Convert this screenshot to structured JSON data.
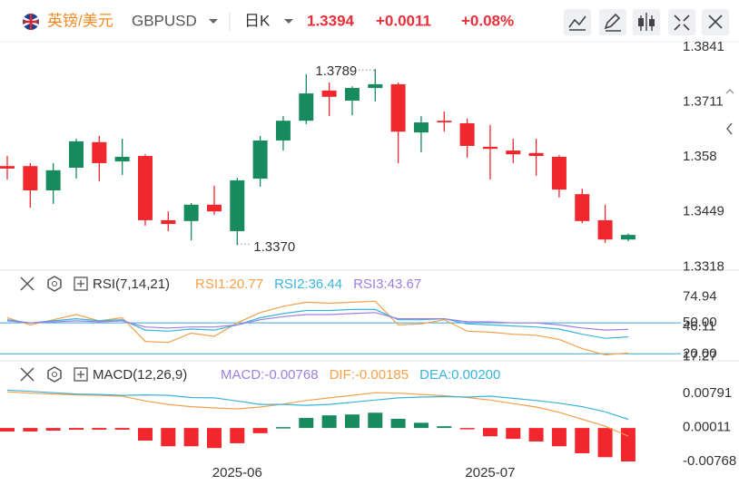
{
  "header": {
    "pair": "英镑/美元",
    "symbol": "GBPUSD",
    "period": "日K",
    "price": "1.3394",
    "change": "+0.0011",
    "change_pct": "+0.08%"
  },
  "chart_data": [
    {
      "type": "candlestick",
      "up_color": "#178a5e",
      "down_color": "#f0282d",
      "open": [
        1.3558,
        1.3558,
        1.35,
        1.3554,
        1.3615,
        1.3569,
        1.3582,
        1.3429,
        1.3427,
        1.3466,
        1.3403,
        1.3528,
        1.3619,
        1.3666,
        1.3738,
        1.3714,
        1.3744,
        1.3753,
        1.3638,
        1.3666,
        1.366,
        1.3604,
        1.3595,
        1.3589,
        1.358,
        1.3491,
        1.3429,
        1.3383
      ],
      "high": [
        1.3582,
        1.3565,
        1.3565,
        1.3623,
        1.363,
        1.3623,
        1.3586,
        1.345,
        1.347,
        1.3511,
        1.353,
        1.363,
        1.3677,
        1.3777,
        1.3757,
        1.3748,
        1.3789,
        1.3757,
        1.3677,
        1.3688,
        1.3671,
        1.3656,
        1.3623,
        1.3623,
        1.3584,
        1.3504,
        1.3466,
        1.3397
      ],
      "low": [
        1.3526,
        1.3459,
        1.3468,
        1.3528,
        1.3522,
        1.3537,
        1.3416,
        1.3403,
        1.3381,
        1.3442,
        1.337,
        1.3509,
        1.3595,
        1.3658,
        1.3677,
        1.3679,
        1.3712,
        1.3565,
        1.3591,
        1.364,
        1.3578,
        1.3526,
        1.3565,
        1.3535,
        1.3483,
        1.3422,
        1.3375,
        1.3379
      ],
      "close": [
        1.3552,
        1.35,
        1.3548,
        1.3617,
        1.3565,
        1.358,
        1.3429,
        1.342,
        1.3466,
        1.345,
        1.3524,
        1.3619,
        1.3666,
        1.3731,
        1.3723,
        1.3744,
        1.3753,
        1.364,
        1.3662,
        1.3662,
        1.3606,
        1.3599,
        1.3586,
        1.3582,
        1.3502,
        1.3427,
        1.3383,
        1.3394
      ],
      "max_label": "1.3789",
      "min_label": "1.3370",
      "ylim": [
        1.331,
        1.385
      ],
      "yticks": [
        1.3841,
        1.3711,
        1.358,
        1.3449,
        1.3318
      ],
      "ytick_colors": [
        "#e8474f",
        "#e8474f",
        "#e8474f",
        "#e8474f",
        "#178a5e"
      ]
    },
    {
      "type": "line",
      "title": "RSI(7,14,21)",
      "ylim": [
        15,
        80
      ],
      "yticks": [
        74.94,
        {
          "value": 50,
          "label": "50.00"
        },
        46.11,
        17.27,
        {
          "value": 20,
          "label": "20.00"
        }
      ],
      "hlines": [
        50,
        20
      ],
      "hline_color": "#3aa7d6",
      "series": [
        {
          "name": "RSI1",
          "label": "RSI1:20.77",
          "color": "#f5a04a",
          "values": [
            55,
            48,
            53,
            58,
            52,
            55,
            32,
            31,
            40,
            37,
            50,
            60,
            66,
            70,
            69,
            70,
            71,
            48,
            49,
            53,
            42,
            41,
            39,
            38,
            34,
            25,
            19,
            20.77
          ]
        },
        {
          "name": "RSI2",
          "label": "RSI2:36.44",
          "color": "#3ab4d9",
          "values": [
            53,
            50,
            52,
            54,
            52,
            53,
            43,
            42,
            44,
            43,
            48,
            55,
            59,
            62,
            62,
            63,
            63,
            53,
            53,
            54,
            49,
            48,
            47,
            46,
            44,
            39,
            35,
            36.44
          ]
        },
        {
          "name": "RSI3",
          "label": "RSI3:43.67",
          "color": "#9d7fe0",
          "values": [
            52,
            50,
            51,
            52,
            51,
            52,
            46,
            45,
            46,
            46,
            48,
            53,
            56,
            58,
            58,
            59,
            60,
            54,
            54,
            54,
            51,
            51,
            50,
            50,
            48,
            45,
            43,
            43.67
          ]
        }
      ]
    },
    {
      "type": "macd",
      "title": "MACD(12,26,9)",
      "ylim": [
        -0.0083,
        0.0098
      ],
      "yticks": [
        0.00791,
        0.00011,
        -0.00768
      ],
      "categories": [
        null,
        null,
        null,
        null,
        null,
        null,
        null,
        null,
        null,
        null,
        "2025-06",
        null,
        null,
        null,
        null,
        null,
        null,
        null,
        null,
        null,
        null,
        "2025-07",
        null,
        null,
        null,
        null,
        null,
        null
      ],
      "series": [
        {
          "name": "MACD",
          "label": "MACD:-0.00768",
          "color": "#9d7fe0",
          "up_color": "#178a5e",
          "down_color": "#f0282d",
          "values": [
            -0.0008,
            -0.0008,
            -0.0006,
            -0.0004,
            -0.0004,
            -0.0004,
            -0.0029,
            -0.0042,
            -0.0042,
            -0.0046,
            -0.0035,
            -0.0012,
            0.0002,
            0.0023,
            0.0029,
            0.0031,
            0.0035,
            0.0021,
            0.0012,
            0.0004,
            -0.0002,
            -0.0019,
            -0.0025,
            -0.0031,
            -0.0042,
            -0.0058,
            -0.0067,
            -0.00768
          ]
        },
        {
          "name": "DIF",
          "label": "DIF:-0.00185",
          "color": "#f5a04a",
          "values": [
            0.0083,
            0.008,
            0.0078,
            0.0076,
            0.0075,
            0.0073,
            0.0062,
            0.0054,
            0.0049,
            0.0046,
            0.0044,
            0.0048,
            0.0055,
            0.0063,
            0.0069,
            0.0075,
            0.0081,
            0.008,
            0.0077,
            0.0074,
            0.007,
            0.0064,
            0.0056,
            0.0048,
            0.0036,
            0.002,
            0.0004,
            -0.00185
          ]
        },
        {
          "name": "DEA",
          "label": "DEA:0.00200",
          "color": "#3ab4d9",
          "values": [
            0.0087,
            0.0084,
            0.0081,
            0.0078,
            0.0077,
            0.0075,
            0.0076,
            0.0075,
            0.007,
            0.0069,
            0.0062,
            0.0054,
            0.0054,
            0.0052,
            0.0054,
            0.0059,
            0.0064,
            0.0069,
            0.0071,
            0.0072,
            0.0071,
            0.0073,
            0.0068,
            0.0063,
            0.0057,
            0.0049,
            0.0037,
            0.002
          ]
        }
      ]
    }
  ]
}
